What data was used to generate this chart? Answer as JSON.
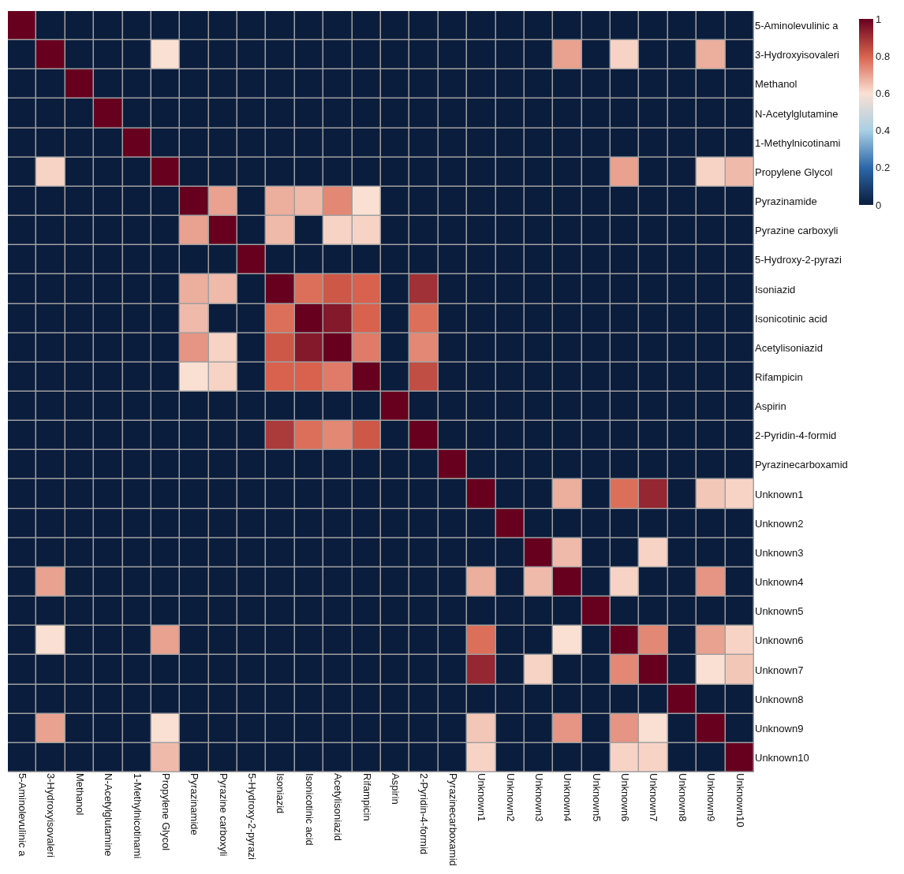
{
  "chart_data": {
    "type": "heatmap",
    "categories": [
      "5-Aminolevulinic a",
      "3-Hydroxyisovaleri",
      "Methanol",
      "N-Acetylglutamine",
      "1-Methylnicotinami",
      "Propylene Glycol",
      "Pyrazinamide",
      "Pyrazine carboxyli",
      "5-Hydroxy-2-pyrazi",
      "Isoniazid",
      "Isonicotinic acid",
      "Acetylisoniazid",
      "Rifampicin",
      "Aspirin",
      "2-Pyridin-4-formid",
      "Pyrazinecarboxamid",
      "Unknown1",
      "Unknown2",
      "Unknown3",
      "Unknown4",
      "Unknown5",
      "Unknown6",
      "Unknown7",
      "Unknown8",
      "Unknown9",
      "Unknown10"
    ],
    "y_categories": [
      "5-Aminolevulinic a",
      "3-Hydroxyisovaleri",
      "Methanol",
      "N-Acetylglutamine",
      "1-Methylnicotinami",
      "Propylene Glycol",
      "Pyrazinamide",
      "Pyrazine carboxyli",
      "5-Hydroxy-2-pyrazi",
      "Isoniazid",
      "Isonicotinic acid",
      "Acetylisoniazid",
      "Rifampicin",
      "Aspirin",
      "2-Pyridin-4-formid",
      "Pyrazinecarboxamid",
      "Unknown1",
      "Unknown2",
      "Unknown3",
      "Unknown4",
      "Unknown5",
      "Unknown6",
      "Unknown7",
      "Unknown8",
      "Unknown9",
      "Unknown10"
    ],
    "cells": [
      [
        1,
        0,
        0,
        0,
        0,
        0,
        0,
        0,
        0,
        0,
        0,
        0,
        0,
        0,
        0,
        0,
        0,
        0,
        0,
        0,
        0,
        0,
        0,
        0,
        0,
        0
      ],
      [
        0,
        1,
        0,
        0,
        0,
        0.6,
        0,
        0,
        0,
        0,
        0,
        0,
        0,
        0,
        0,
        0,
        0,
        0,
        0,
        0.7,
        0,
        0.62,
        0,
        0,
        0.68,
        0
      ],
      [
        0,
        0,
        1,
        0,
        0,
        0,
        0,
        0,
        0,
        0,
        0,
        0,
        0,
        0,
        0,
        0,
        0,
        0,
        0,
        0,
        0,
        0,
        0,
        0,
        0,
        0
      ],
      [
        0,
        0,
        0,
        1,
        0,
        0,
        0,
        0,
        0,
        0,
        0,
        0,
        0,
        0,
        0,
        0,
        0,
        0,
        0,
        0,
        0,
        0,
        0,
        0,
        0,
        0
      ],
      [
        0,
        0,
        0,
        0,
        1,
        0,
        0,
        0,
        0,
        0,
        0,
        0,
        0,
        0,
        0,
        0,
        0,
        0,
        0,
        0,
        0,
        0,
        0,
        0,
        0,
        0
      ],
      [
        0,
        0.62,
        0,
        0,
        0,
        1,
        0,
        0,
        0,
        0,
        0,
        0,
        0,
        0,
        0,
        0,
        0,
        0,
        0,
        0,
        0,
        0.7,
        0,
        0,
        0.62,
        0.66
      ],
      [
        0,
        0,
        0,
        0,
        0,
        0,
        1,
        0.7,
        0,
        0.68,
        0.66,
        0.74,
        0.6,
        0,
        0,
        0,
        0,
        0,
        0,
        0,
        0,
        0,
        0,
        0,
        0,
        0
      ],
      [
        0,
        0,
        0,
        0,
        0,
        0,
        0.7,
        1,
        0,
        0.66,
        0,
        0.62,
        0.62,
        0,
        0,
        0,
        0,
        0,
        0,
        0,
        0,
        0,
        0,
        0,
        0,
        0
      ],
      [
        0,
        0,
        0,
        0,
        0,
        0,
        0,
        0,
        1,
        0,
        0,
        0,
        0,
        0,
        0,
        0,
        0,
        0,
        0,
        0,
        0,
        0,
        0,
        0,
        0,
        0
      ],
      [
        0,
        0,
        0,
        0,
        0,
        0,
        0.68,
        0.66,
        0,
        1,
        0.78,
        0.82,
        0.8,
        0,
        0.9,
        0,
        0,
        0,
        0,
        0,
        0,
        0,
        0,
        0,
        0,
        0
      ],
      [
        0,
        0,
        0,
        0,
        0,
        0,
        0.66,
        0,
        0,
        0.78,
        1,
        0.95,
        0.8,
        0,
        0.78,
        0,
        0,
        0,
        0,
        0,
        0,
        0,
        0,
        0,
        0,
        0
      ],
      [
        0,
        0,
        0,
        0,
        0,
        0,
        0.72,
        0.62,
        0,
        0.82,
        0.95,
        1,
        0.76,
        0,
        0.74,
        0,
        0,
        0,
        0,
        0,
        0,
        0,
        0,
        0,
        0,
        0
      ],
      [
        0,
        0,
        0,
        0,
        0,
        0,
        0.6,
        0.62,
        0,
        0.8,
        0.8,
        0.76,
        1,
        0,
        0.84,
        0,
        0,
        0,
        0,
        0,
        0,
        0,
        0,
        0,
        0,
        0
      ],
      [
        0,
        0,
        0,
        0,
        0,
        0,
        0,
        0,
        0,
        0,
        0,
        0,
        0,
        1,
        0,
        0,
        0,
        0,
        0,
        0,
        0,
        0,
        0,
        0,
        0,
        0
      ],
      [
        0,
        0,
        0,
        0,
        0,
        0,
        0,
        0,
        0,
        0.88,
        0.78,
        0.74,
        0.82,
        0,
        1,
        0,
        0,
        0,
        0,
        0,
        0,
        0,
        0,
        0,
        0,
        0
      ],
      [
        0,
        0,
        0,
        0,
        0,
        0,
        0,
        0,
        0,
        0,
        0,
        0,
        0,
        0,
        0,
        1,
        0,
        0,
        0,
        0,
        0,
        0,
        0,
        0,
        0,
        0
      ],
      [
        0,
        0,
        0,
        0,
        0,
        0,
        0,
        0,
        0,
        0,
        0,
        0,
        0,
        0,
        0,
        0,
        1,
        0,
        0,
        0.68,
        0,
        0.78,
        0.92,
        0,
        0.64,
        0.62
      ],
      [
        0,
        0,
        0,
        0,
        0,
        0,
        0,
        0,
        0,
        0,
        0,
        0,
        0,
        0,
        0,
        0,
        0,
        1,
        0,
        0,
        0,
        0,
        0,
        0,
        0,
        0
      ],
      [
        0,
        0,
        0,
        0,
        0,
        0,
        0,
        0,
        0,
        0,
        0,
        0,
        0,
        0,
        0,
        0,
        0,
        0,
        1,
        0.66,
        0,
        0,
        0.62,
        0,
        0,
        0
      ],
      [
        0,
        0.7,
        0,
        0,
        0,
        0,
        0,
        0,
        0,
        0,
        0,
        0,
        0,
        0,
        0,
        0,
        0.68,
        0,
        0.66,
        1,
        0,
        0.62,
        0,
        0,
        0.72,
        0
      ],
      [
        0,
        0,
        0,
        0,
        0,
        0,
        0,
        0,
        0,
        0,
        0,
        0,
        0,
        0,
        0,
        0,
        0,
        0,
        0,
        0,
        1,
        0,
        0,
        0,
        0,
        0
      ],
      [
        0,
        0.6,
        0,
        0,
        0,
        0.7,
        0,
        0,
        0,
        0,
        0,
        0,
        0,
        0,
        0,
        0,
        0.78,
        0,
        0,
        0.6,
        0,
        1,
        0.74,
        0,
        0.7,
        0.62
      ],
      [
        0,
        0,
        0,
        0,
        0,
        0,
        0,
        0,
        0,
        0,
        0,
        0,
        0,
        0,
        0,
        0,
        0.92,
        0,
        0.62,
        0,
        0,
        0.74,
        1,
        0,
        0.6,
        0.64
      ],
      [
        0,
        0,
        0,
        0,
        0,
        0,
        0,
        0,
        0,
        0,
        0,
        0,
        0,
        0,
        0,
        0,
        0,
        0,
        0,
        0,
        0,
        0,
        0,
        1,
        0,
        0
      ],
      [
        0,
        0.7,
        0,
        0,
        0,
        0.6,
        0,
        0,
        0,
        0,
        0,
        0,
        0,
        0,
        0,
        0,
        0.64,
        0,
        0,
        0.72,
        0,
        0.72,
        0.6,
        0,
        1,
        0
      ],
      [
        0,
        0,
        0,
        0,
        0,
        0.66,
        0,
        0,
        0,
        0,
        0,
        0,
        0,
        0,
        0,
        0,
        0.62,
        0,
        0,
        0,
        0,
        0.62,
        0.62,
        0,
        0,
        1
      ]
    ],
    "clim": [
      0,
      1
    ],
    "cticks": [
      0,
      0.2,
      0.4,
      0.6,
      0.8,
      1
    ]
  }
}
